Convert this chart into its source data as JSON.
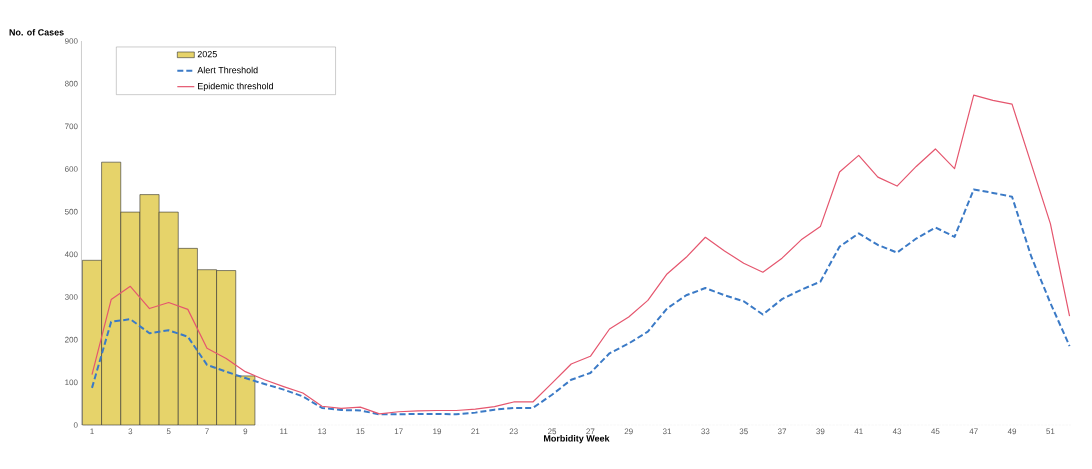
{
  "chart_data": {
    "type": "bar",
    "xlabel": "Morbidity Week",
    "ylabel": "No. of Cases",
    "categories": [
      "1",
      null,
      "3",
      null,
      "5",
      null,
      "7",
      null,
      "9",
      null,
      "11",
      null,
      "13",
      null,
      "15",
      null,
      "17",
      null,
      "19",
      null,
      "21",
      null,
      "23",
      null,
      "25",
      null,
      "27",
      null,
      "29",
      null,
      "31",
      null,
      "33",
      null,
      "35",
      null,
      "37",
      null,
      "39",
      null,
      "41",
      null,
      "43",
      null,
      "45",
      null,
      "47",
      null,
      "49",
      null,
      "51",
      null
    ],
    "ylim": [
      0,
      900
    ],
    "yticks": [
      0,
      100,
      200,
      300,
      400,
      500,
      600,
      700,
      800,
      900
    ],
    "legend": "top left",
    "grid": false,
    "marker": "none",
    "series": [
      {
        "name": "2025",
        "color": "#e6d36a",
        "values": [
          386,
          616,
          499,
          540,
          499,
          414,
          364,
          362,
          115,
          null,
          null,
          null,
          null,
          null,
          null,
          null,
          null,
          null,
          null,
          null,
          null,
          null,
          null,
          null,
          null,
          null,
          null,
          null,
          null,
          null,
          null,
          null,
          null,
          null,
          null,
          null,
          null,
          null,
          null,
          null,
          null,
          null,
          null,
          null,
          null,
          null,
          null,
          null,
          null,
          null,
          null,
          null
        ]
      },
      {
        "name": "Alert Threshold",
        "type": "line",
        "line_style": "dashed",
        "color": "#3b7ac6",
        "values": [
          87,
          242,
          248,
          215,
          222,
          207,
          141,
          125,
          110,
          96,
          83,
          67,
          40,
          35,
          34,
          25,
          25,
          26,
          26,
          25,
          29,
          36,
          40,
          40,
          71,
          106,
          122,
          168,
          191,
          219,
          273,
          304,
          321,
          304,
          290,
          259,
          295,
          317,
          336,
          418,
          449,
          422,
          404,
          437,
          463,
          441,
          552,
          544,
          535,
          395,
          286,
          185
        ]
      },
      {
        "name": "Epidemic threshold",
        "type": "line",
        "line_style": "solid",
        "color": "#e5566e",
        "values": [
          118,
          294,
          325,
          273,
          287,
          271,
          180,
          156,
          125,
          106,
          90,
          75,
          44,
          39,
          42,
          26,
          31,
          33,
          34,
          34,
          37,
          43,
          54,
          54,
          98,
          143,
          161,
          225,
          253,
          292,
          354,
          393,
          440,
          408,
          379,
          358,
          391,
          434,
          465,
          593,
          632,
          581,
          560,
          606,
          647,
          601,
          773,
          761,
          752,
          612,
          472,
          255
        ]
      }
    ]
  }
}
